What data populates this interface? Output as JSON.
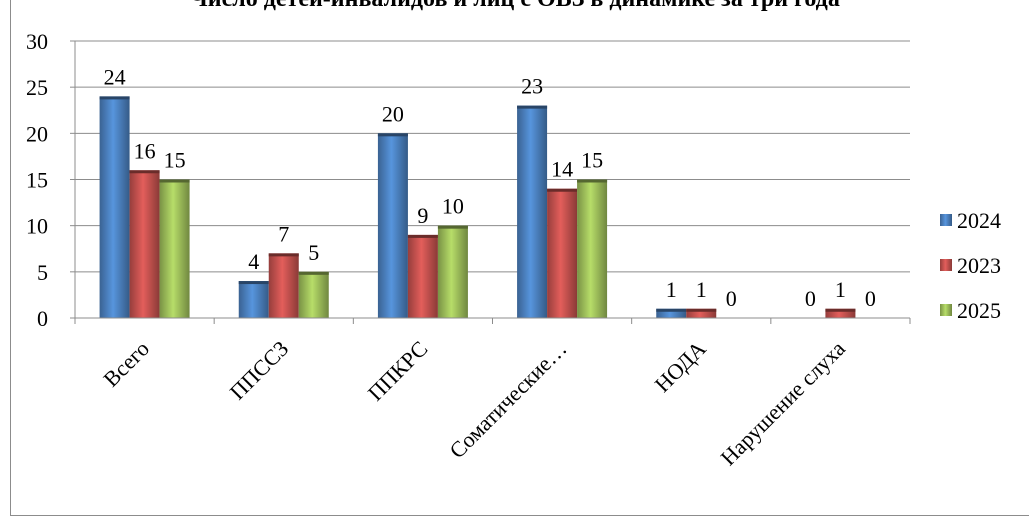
{
  "chart_data": {
    "type": "bar",
    "title": "Число детей-инвалидов и лиц с ОВЗ в динамике за три года",
    "categories": [
      "Всего",
      "ППССЗ",
      "ППКРС",
      "Соматические…",
      "НОДА",
      "Нарушение слуха"
    ],
    "series": [
      {
        "name": "2024",
        "values": [
          24,
          4,
          20,
          23,
          1,
          0
        ],
        "color": "#4a7ebb"
      },
      {
        "name": "2023",
        "values": [
          16,
          7,
          9,
          14,
          1,
          1
        ],
        "color": "#c0504d"
      },
      {
        "name": "2025",
        "values": [
          15,
          5,
          10,
          15,
          0,
          0
        ],
        "color": "#9bbb59"
      }
    ],
    "ylim": [
      0,
      30
    ],
    "yticks": [
      0,
      5,
      10,
      15,
      20,
      25,
      30
    ],
    "grid": true,
    "legend": "right"
  }
}
